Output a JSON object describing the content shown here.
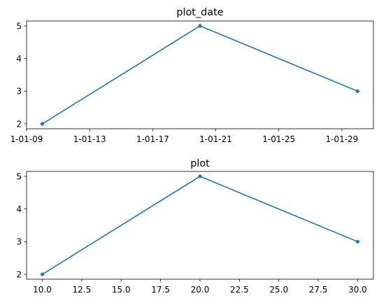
{
  "colors": {
    "series": "#1f77b4",
    "axes": "#000000",
    "background": "#ffffff"
  },
  "chart_data": [
    {
      "type": "line",
      "title": "plot_date",
      "xlabel": "",
      "ylabel": "",
      "x_kind": "date",
      "x": [
        "1-01-10",
        "1-01-20",
        "1-01-30"
      ],
      "y": [
        2,
        5,
        3
      ],
      "xticks": [
        "1-01-09",
        "1-01-13",
        "1-01-17",
        "1-01-21",
        "1-01-25",
        "1-01-29"
      ],
      "yticks": [
        2,
        3,
        4,
        5
      ],
      "xlim": [
        "1-01-09",
        "1-01-31"
      ],
      "ylim": [
        1.85,
        5.15
      ],
      "marker": "dot",
      "grid": false,
      "legend": false
    },
    {
      "type": "line",
      "title": "plot",
      "xlabel": "",
      "ylabel": "",
      "x_kind": "number",
      "x": [
        10,
        20,
        30
      ],
      "y": [
        2,
        5,
        3
      ],
      "xticks": [
        10.0,
        12.5,
        15.0,
        17.5,
        20.0,
        22.5,
        25.0,
        27.5,
        30.0
      ],
      "xtick_labels": [
        "10.0",
        "12.5",
        "15.0",
        "17.5",
        "20.0",
        "22.5",
        "25.0",
        "27.5",
        "30.0"
      ],
      "yticks": [
        2,
        3,
        4,
        5
      ],
      "xlim": [
        9,
        31
      ],
      "ylim": [
        1.85,
        5.15
      ],
      "marker": "dot",
      "grid": false,
      "legend": false
    }
  ]
}
